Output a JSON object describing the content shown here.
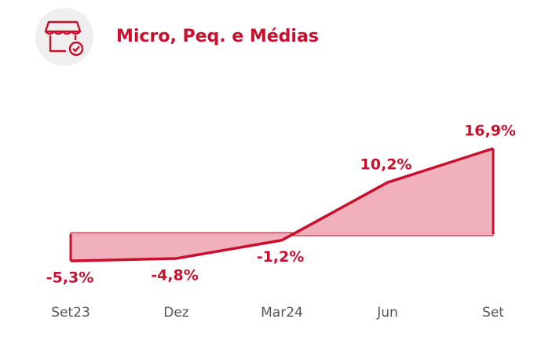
{
  "chart_data": {
    "type": "area",
    "title": "Micro, Peq. e Médias",
    "categories": [
      "Set23",
      "Dez",
      "Mar24",
      "Jun",
      "Set"
    ],
    "values": [
      -5.3,
      -4.8,
      -1.2,
      10.2,
      16.9
    ],
    "value_labels": [
      "-5,3%",
      "-4,8%",
      "-1,2%",
      "10,2%",
      "16,9%"
    ],
    "color": "#c8102e",
    "fill": "#f0adb8",
    "ylim": [
      -10,
      20
    ]
  }
}
